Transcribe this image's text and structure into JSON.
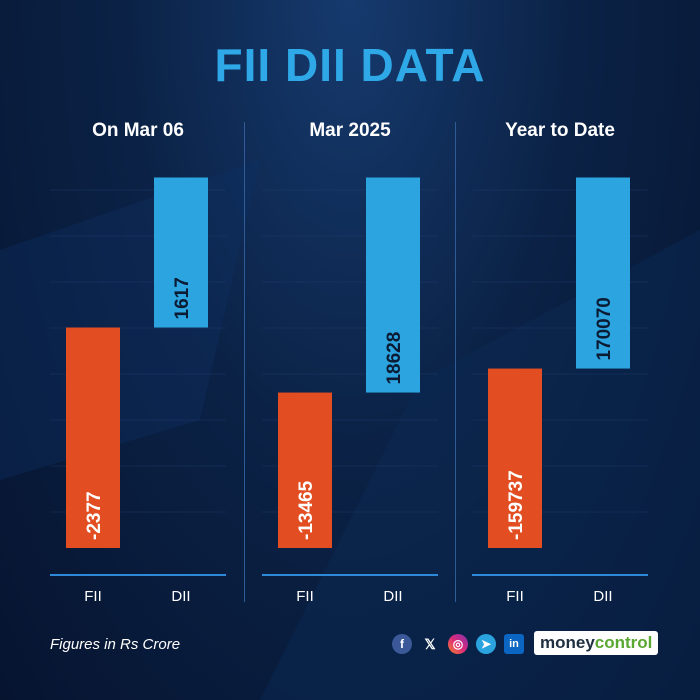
{
  "title": "FII DII DATA",
  "footnote": "Figures in Rs Crore",
  "brand": {
    "part1": "money",
    "part2": "control"
  },
  "social_icons": [
    "facebook-icon",
    "x-icon",
    "instagram-icon",
    "telegram-icon",
    "linkedin-icon"
  ],
  "colors": {
    "fii": "#e24e22",
    "dii": "#2ba4e0",
    "title": "#2ea8e6",
    "baseline": "#2e8ad8"
  },
  "chart_data": [
    {
      "type": "bar",
      "title": "On Mar 06",
      "categories": [
        "FII",
        "DII"
      ],
      "values": [
        -2377,
        1617
      ]
    },
    {
      "type": "bar",
      "title": "Mar 2025",
      "categories": [
        "FII",
        "DII"
      ],
      "values": [
        -13465,
        18628
      ]
    },
    {
      "type": "bar",
      "title": "Year to Date",
      "categories": [
        "FII",
        "DII"
      ],
      "values": [
        -159737,
        170070
      ]
    }
  ]
}
